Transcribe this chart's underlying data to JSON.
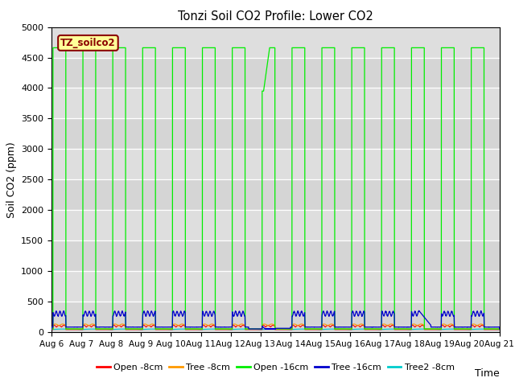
{
  "title": "Tonzi Soil CO2 Profile: Lower CO2",
  "xlabel": "Time",
  "ylabel": "Soil CO2 (ppm)",
  "ylim": [
    0,
    5000
  ],
  "bg_color": "#dcdcdc",
  "legend_label": "TZ_soilco2",
  "legend_box_color": "#8b0000",
  "legend_box_bg": "#ffff99",
  "series": {
    "open_8cm": {
      "label": "Open -8cm",
      "color": "#ff0000"
    },
    "tree_8cm": {
      "label": "Tree -8cm",
      "color": "#ff9900"
    },
    "open_16cm": {
      "label": "Open -16cm",
      "color": "#00ee00"
    },
    "tree_16cm": {
      "label": "Tree -16cm",
      "color": "#0000cc"
    },
    "tree2_8cm": {
      "label": "Tree2 -8cm",
      "color": "#00cccc"
    }
  },
  "x_tick_labels": [
    "Aug 6",
    "Aug 7",
    "Aug 8",
    "Aug 9",
    "Aug 10",
    "Aug 11",
    "Aug 12",
    "Aug 13",
    "Aug 14",
    "Aug 15",
    "Aug 16",
    "Aug 17",
    "Aug 18",
    "Aug 19",
    "Aug 20",
    "Aug 21"
  ],
  "n_days": 15,
  "high_val": 4660,
  "low_val": 50,
  "grid_color": "#ffffff",
  "yticks": [
    0,
    500,
    1000,
    1500,
    2000,
    2500,
    3000,
    3500,
    4000,
    4500,
    5000
  ]
}
